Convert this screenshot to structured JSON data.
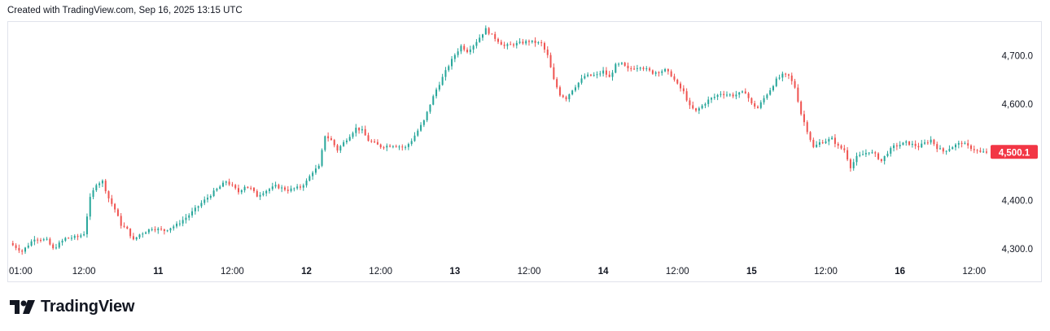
{
  "header": {
    "text": "Created with TradingView.com, Sep 16, 2025 13:15 UTC"
  },
  "brand": {
    "name": "TradingView",
    "icon": "tradingview-logo-icon"
  },
  "colors": {
    "up": "#26a69a",
    "down": "#ef5350",
    "last_price_bg": "#f23645",
    "axis_text": "#131722",
    "frame": "#e0e3eb"
  },
  "chart_data": {
    "type": "candlestick",
    "title": "",
    "xlabel": "",
    "ylabel": "",
    "ylim": [
      4280,
      4770
    ],
    "grid": false,
    "y_ticks": [
      {
        "value": 4700,
        "label": "4,700.0"
      },
      {
        "value": 4600,
        "label": "4,600.0"
      },
      {
        "value": 4500,
        "label": "4,500.0"
      },
      {
        "value": 4400,
        "label": "4,400.0"
      },
      {
        "value": 4300,
        "label": "4,300.0"
      }
    ],
    "x_ticks": [
      {
        "t": 1,
        "label": "01:00",
        "bold": false
      },
      {
        "t": 12,
        "label": "12:00",
        "bold": false
      },
      {
        "t": 24,
        "label": "11",
        "bold": true
      },
      {
        "t": 36,
        "label": "12:00",
        "bold": false
      },
      {
        "t": 48,
        "label": "12",
        "bold": true
      },
      {
        "t": 60,
        "label": "12:00",
        "bold": false
      },
      {
        "t": 72,
        "label": "13",
        "bold": true
      },
      {
        "t": 84,
        "label": "12:00",
        "bold": false
      },
      {
        "t": 96,
        "label": "14",
        "bold": true
      },
      {
        "t": 108,
        "label": "12:00",
        "bold": false
      },
      {
        "t": 120,
        "label": "15",
        "bold": true
      },
      {
        "t": 132,
        "label": "12:00",
        "bold": false
      },
      {
        "t": 144,
        "label": "16",
        "bold": true
      },
      {
        "t": 156,
        "label": "12:00",
        "bold": false
      }
    ],
    "x_range_hours": [
      0,
      158
    ],
    "last_price": {
      "value": 4500.1,
      "label": "4,500.1"
    },
    "path": [
      [
        0,
        4312
      ],
      [
        2,
        4295
      ],
      [
        4,
        4322
      ],
      [
        6,
        4318
      ],
      [
        7,
        4300
      ],
      [
        9,
        4322
      ],
      [
        11,
        4325
      ],
      [
        12,
        4332
      ],
      [
        13,
        4405
      ],
      [
        14,
        4435
      ],
      [
        15,
        4440
      ],
      [
        16,
        4405
      ],
      [
        17,
        4382
      ],
      [
        18,
        4350
      ],
      [
        19,
        4340
      ],
      [
        20,
        4318
      ],
      [
        21,
        4330
      ],
      [
        23,
        4343
      ],
      [
        25,
        4338
      ],
      [
        27,
        4350
      ],
      [
        29,
        4370
      ],
      [
        31,
        4395
      ],
      [
        33,
        4418
      ],
      [
        35,
        4440
      ],
      [
        36,
        4430
      ],
      [
        37,
        4418
      ],
      [
        38,
        4430
      ],
      [
        39,
        4425
      ],
      [
        40,
        4410
      ],
      [
        41,
        4418
      ],
      [
        43,
        4430
      ],
      [
        45,
        4422
      ],
      [
        47,
        4428
      ],
      [
        48,
        4440
      ],
      [
        49,
        4460
      ],
      [
        50,
        4470
      ],
      [
        51,
        4535
      ],
      [
        52,
        4525
      ],
      [
        53,
        4505
      ],
      [
        54,
        4520
      ],
      [
        55,
        4535
      ],
      [
        56,
        4550
      ],
      [
        57,
        4545
      ],
      [
        58,
        4525
      ],
      [
        60,
        4512
      ],
      [
        62,
        4515
      ],
      [
        64,
        4510
      ],
      [
        65,
        4525
      ],
      [
        67,
        4565
      ],
      [
        68,
        4600
      ],
      [
        69,
        4630
      ],
      [
        70,
        4655
      ],
      [
        71,
        4680
      ],
      [
        72,
        4702
      ],
      [
        73,
        4720
      ],
      [
        74,
        4710
      ],
      [
        75,
        4722
      ],
      [
        76,
        4738
      ],
      [
        77,
        4755
      ],
      [
        78,
        4742
      ],
      [
        80,
        4720
      ],
      [
        82,
        4725
      ],
      [
        84,
        4730
      ],
      [
        86,
        4725
      ],
      [
        87,
        4700
      ],
      [
        88,
        4650
      ],
      [
        89,
        4620
      ],
      [
        90,
        4612
      ],
      [
        91,
        4630
      ],
      [
        93,
        4658
      ],
      [
        95,
        4660
      ],
      [
        96,
        4668
      ],
      [
        97,
        4655
      ],
      [
        98,
        4680
      ],
      [
        99,
        4683
      ],
      [
        100,
        4672
      ],
      [
        102,
        4678
      ],
      [
        104,
        4665
      ],
      [
        106,
        4670
      ],
      [
        107,
        4660
      ],
      [
        108,
        4640
      ],
      [
        109,
        4625
      ],
      [
        110,
        4595
      ],
      [
        111,
        4585
      ],
      [
        113,
        4608
      ],
      [
        115,
        4622
      ],
      [
        117,
        4618
      ],
      [
        119,
        4625
      ],
      [
        120,
        4600
      ],
      [
        121,
        4592
      ],
      [
        122,
        4612
      ],
      [
        123,
        4630
      ],
      [
        124,
        4650
      ],
      [
        125,
        4660
      ],
      [
        126,
        4658
      ],
      [
        127,
        4635
      ],
      [
        128,
        4580
      ],
      [
        129,
        4545
      ],
      [
        130,
        4510
      ],
      [
        131,
        4520
      ],
      [
        133,
        4528
      ],
      [
        134,
        4512
      ],
      [
        135,
        4505
      ],
      [
        136,
        4470
      ],
      [
        137,
        4490
      ],
      [
        139,
        4502
      ],
      [
        140,
        4495
      ],
      [
        141,
        4482
      ],
      [
        142,
        4500
      ],
      [
        143,
        4512
      ],
      [
        145,
        4520
      ],
      [
        147,
        4512
      ],
      [
        149,
        4526
      ],
      [
        150,
        4510
      ],
      [
        151,
        4502
      ],
      [
        153,
        4515
      ],
      [
        154,
        4520
      ],
      [
        155,
        4512
      ],
      [
        157,
        4500
      ],
      [
        158,
        4500.1
      ]
    ]
  }
}
